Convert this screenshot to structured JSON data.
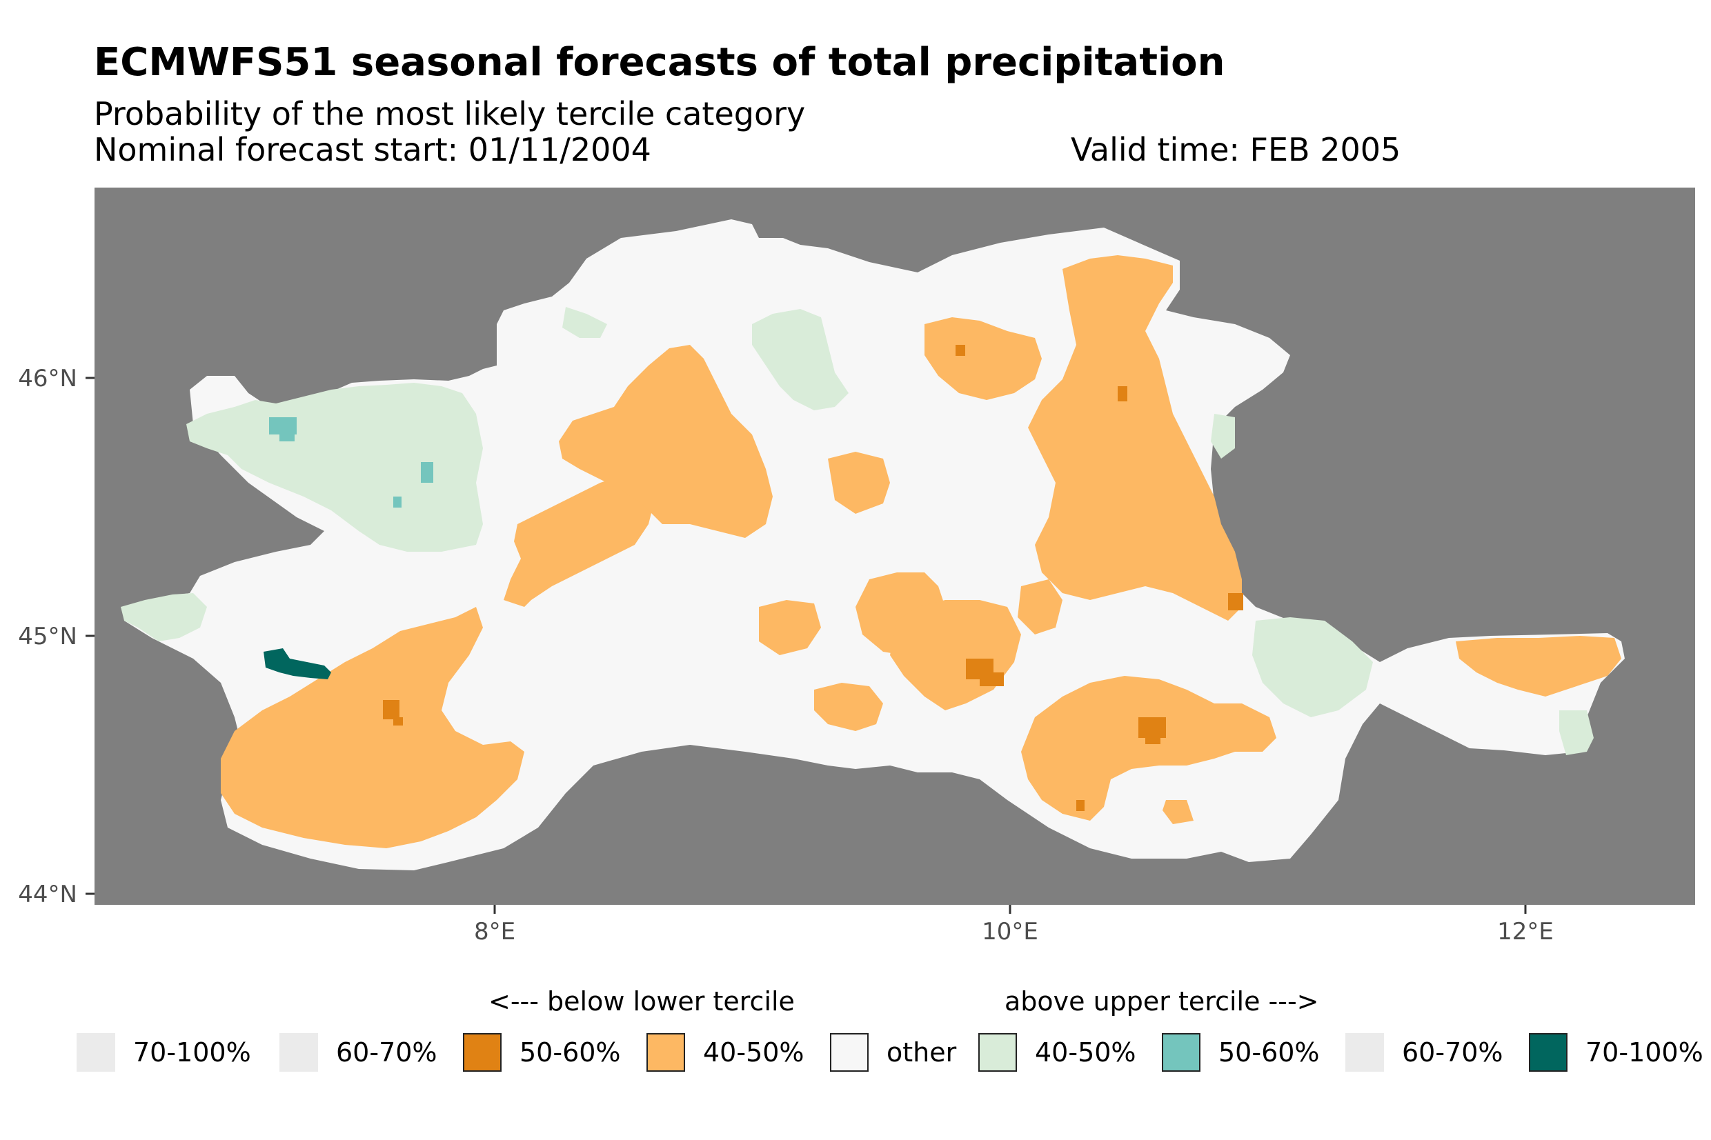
{
  "title": "ECMWFS51 seasonal forecasts of total precipitation",
  "subtitle": "Probability of the most likely tercile category",
  "forecast_start": "Nominal forecast start: 01/11/2004",
  "valid_time": "Valid time: FEB 2005",
  "axes": {
    "x_ticks": [
      "8°E",
      "10°E",
      "12°E"
    ],
    "y_ticks": [
      "46°N",
      "45°N",
      "44°N"
    ]
  },
  "legend": {
    "below_label": "<--- below lower tercile",
    "above_label": "above upper tercile --->",
    "items": [
      {
        "label": "70-100%",
        "color": "#ebebeb",
        "border": false
      },
      {
        "label": "60-70%",
        "color": "#ebebeb",
        "border": false
      },
      {
        "label": "50-60%",
        "color": "#e08214",
        "border": true
      },
      {
        "label": "40-50%",
        "color": "#fdb863",
        "border": true
      },
      {
        "label": "other",
        "color": "#f7f7f7",
        "border": true
      },
      {
        "label": "40-50%",
        "color": "#d9ecd9",
        "border": true
      },
      {
        "label": "50-60%",
        "color": "#74c5bd",
        "border": true
      },
      {
        "label": "60-70%",
        "color": "#ebebeb",
        "border": false
      },
      {
        "label": "70-100%",
        "color": "#01665e",
        "border": true
      }
    ]
  },
  "colors": {
    "background": "#7f7f7f",
    "other": "#f7f7f7",
    "below_40_50": "#fdb863",
    "below_50_60": "#e08214",
    "above_40_50": "#d9ecd9",
    "above_50_60": "#74c5bd",
    "above_70_100": "#01665e"
  }
}
